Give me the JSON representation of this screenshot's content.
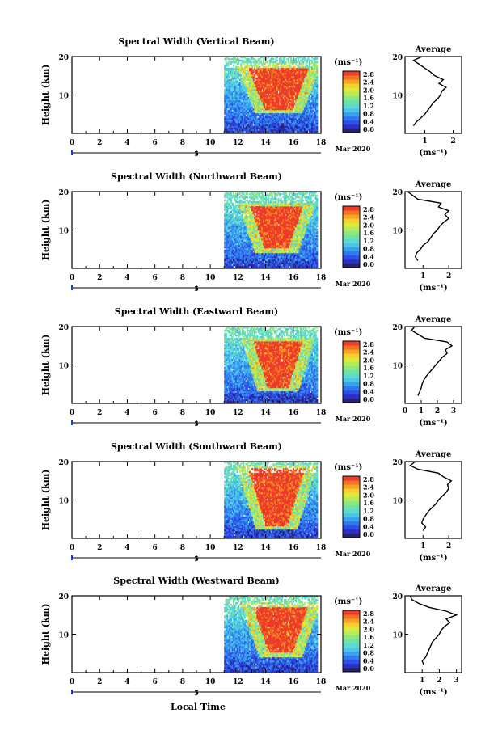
{
  "colorbar_unit": "(ms⁻¹)",
  "colorbar_ticks": [
    "0.0",
    "0.4",
    "0.8",
    "1.2",
    "1.6",
    "2.0",
    "2.4",
    "2.8"
  ],
  "colorscale": [
    "#23236e",
    "#2b2ec0",
    "#2f4fe8",
    "#2f78ee",
    "#3aa0f0",
    "#4dc6ea",
    "#5fdad0",
    "#6ee3a8",
    "#8de880",
    "#b5ec5a",
    "#dcea3e",
    "#f5d02e",
    "#f8a325",
    "#f47320",
    "#ee3b2a"
  ],
  "time_axis_label": "Local Time",
  "date_label": "Mar 2020",
  "date_tick_label": "5",
  "avg_unit": "(ms⁻¹)",
  "chart_data": [
    {
      "type": "heatmap",
      "title": "Spectral Width (Vertical Beam)",
      "ylabel": "Height (km)",
      "xlim": [
        0,
        18
      ],
      "ylim": [
        0,
        20
      ],
      "x_ticks": [
        "0",
        "2",
        "4",
        "6",
        "8",
        "10",
        "12",
        "14",
        "16",
        "18"
      ],
      "y_ticks": [
        "10",
        "20"
      ],
      "data_start_hour": 11.0,
      "core_hours": [
        14.0,
        15.8
      ],
      "core_height_km": [
        7,
        17
      ],
      "average_profile": {
        "title": "Average",
        "xlim": [
          0.3,
          2.3
        ],
        "x_ticks": [
          "1",
          "2"
        ],
        "heights_km": [
          2,
          3,
          4,
          5,
          6,
          7,
          8,
          9,
          10,
          11,
          12,
          13,
          14,
          15,
          16,
          17,
          18,
          19,
          20
        ],
        "values": [
          0.6,
          0.7,
          0.85,
          1.0,
          1.1,
          1.2,
          1.3,
          1.45,
          1.55,
          1.6,
          1.75,
          1.5,
          1.65,
          1.35,
          1.2,
          1.0,
          0.8,
          0.6,
          0.9
        ]
      }
    },
    {
      "type": "heatmap",
      "title": "Spectral Width (Northward Beam)",
      "ylabel": "Height (km)",
      "xlim": [
        0,
        18
      ],
      "ylim": [
        0,
        20
      ],
      "x_ticks": [
        "0",
        "2",
        "4",
        "6",
        "8",
        "10",
        "12",
        "14",
        "16",
        "18"
      ],
      "y_ticks": [
        "10",
        "20"
      ],
      "data_start_hour": 11.0,
      "core_hours": [
        14.0,
        15.5
      ],
      "core_height_km": [
        6,
        16
      ],
      "average_profile": {
        "title": "Average",
        "xlim": [
          0.3,
          2.5
        ],
        "x_ticks": [
          "1",
          "2"
        ],
        "heights_km": [
          2,
          3,
          4,
          5,
          6,
          7,
          8,
          9,
          10,
          11,
          12,
          13,
          14,
          15,
          16,
          17,
          18,
          19,
          20
        ],
        "values": [
          0.8,
          0.7,
          0.75,
          0.9,
          1.0,
          1.2,
          1.3,
          1.4,
          1.55,
          1.65,
          1.8,
          2.0,
          1.85,
          2.0,
          1.6,
          1.7,
          0.8,
          0.6,
          0.4
        ]
      }
    },
    {
      "type": "heatmap",
      "title": "Spectral Width (Eastward Beam)",
      "ylabel": "Height (km)",
      "xlim": [
        0,
        18
      ],
      "ylim": [
        0,
        20
      ],
      "x_ticks": [
        "0",
        "2",
        "4",
        "6",
        "8",
        "10",
        "12",
        "14",
        "16",
        "18"
      ],
      "y_ticks": [
        "10",
        "20"
      ],
      "data_start_hour": 11.0,
      "core_hours": [
        14.2,
        15.5
      ],
      "core_height_km": [
        5,
        16
      ],
      "average_profile": {
        "title": "Average",
        "xlim": [
          0.0,
          3.5
        ],
        "x_ticks": [
          "0",
          "1",
          "2",
          "3"
        ],
        "heights_km": [
          2,
          3,
          4,
          5,
          6,
          7,
          8,
          9,
          10,
          11,
          12,
          13,
          14,
          15,
          16,
          17,
          18,
          19,
          20
        ],
        "values": [
          0.8,
          0.9,
          1.0,
          1.05,
          1.15,
          1.3,
          1.5,
          1.7,
          1.9,
          2.1,
          2.3,
          2.6,
          2.5,
          2.9,
          2.6,
          1.2,
          0.8,
          0.4,
          0.6
        ]
      }
    },
    {
      "type": "heatmap",
      "title": "Spectral Width (Southward Beam)",
      "ylabel": "Height (km)",
      "xlim": [
        0,
        18
      ],
      "ylim": [
        0,
        20
      ],
      "x_ticks": [
        "0",
        "2",
        "4",
        "6",
        "8",
        "10",
        "12",
        "14",
        "16",
        "18"
      ],
      "y_ticks": [
        "10",
        "20"
      ],
      "data_start_hour": 11.0,
      "core_hours": [
        14.1,
        15.4
      ],
      "core_height_km": [
        4,
        18
      ],
      "average_profile": {
        "title": "Average",
        "xlim": [
          0.3,
          2.5
        ],
        "x_ticks": [
          "1",
          "2"
        ],
        "heights_km": [
          2,
          3,
          4,
          5,
          6,
          7,
          8,
          9,
          10,
          11,
          12,
          13,
          14,
          15,
          16,
          17,
          18,
          19,
          20
        ],
        "values": [
          1.0,
          1.1,
          0.95,
          1.0,
          1.1,
          1.2,
          1.35,
          1.5,
          1.6,
          1.75,
          1.9,
          2.0,
          1.95,
          2.1,
          1.8,
          1.6,
          0.8,
          0.5,
          0.7
        ]
      }
    },
    {
      "type": "heatmap",
      "title": "Spectral Width (Westward Beam)",
      "ylabel": "Height (km)",
      "xlim": [
        0,
        18
      ],
      "ylim": [
        0,
        20
      ],
      "x_ticks": [
        "0",
        "2",
        "4",
        "6",
        "8",
        "10",
        "12",
        "14",
        "16",
        "18"
      ],
      "y_ticks": [
        "10",
        "20"
      ],
      "data_start_hour": 11.0,
      "core_hours": [
        14.3,
        15.8
      ],
      "core_height_km": [
        6,
        17
      ],
      "average_profile": {
        "title": "Average",
        "xlim": [
          0.0,
          3.3
        ],
        "x_ticks": [
          "1",
          "2",
          "3"
        ],
        "heights_km": [
          2,
          3,
          4,
          5,
          6,
          7,
          8,
          9,
          10,
          11,
          12,
          13,
          14,
          15,
          16,
          17,
          18,
          19,
          20
        ],
        "values": [
          1.1,
          1.0,
          1.2,
          1.3,
          1.4,
          1.5,
          1.6,
          1.8,
          2.0,
          2.1,
          2.3,
          2.6,
          2.4,
          3.0,
          2.4,
          1.4,
          0.8,
          0.4,
          0.3
        ]
      }
    }
  ]
}
